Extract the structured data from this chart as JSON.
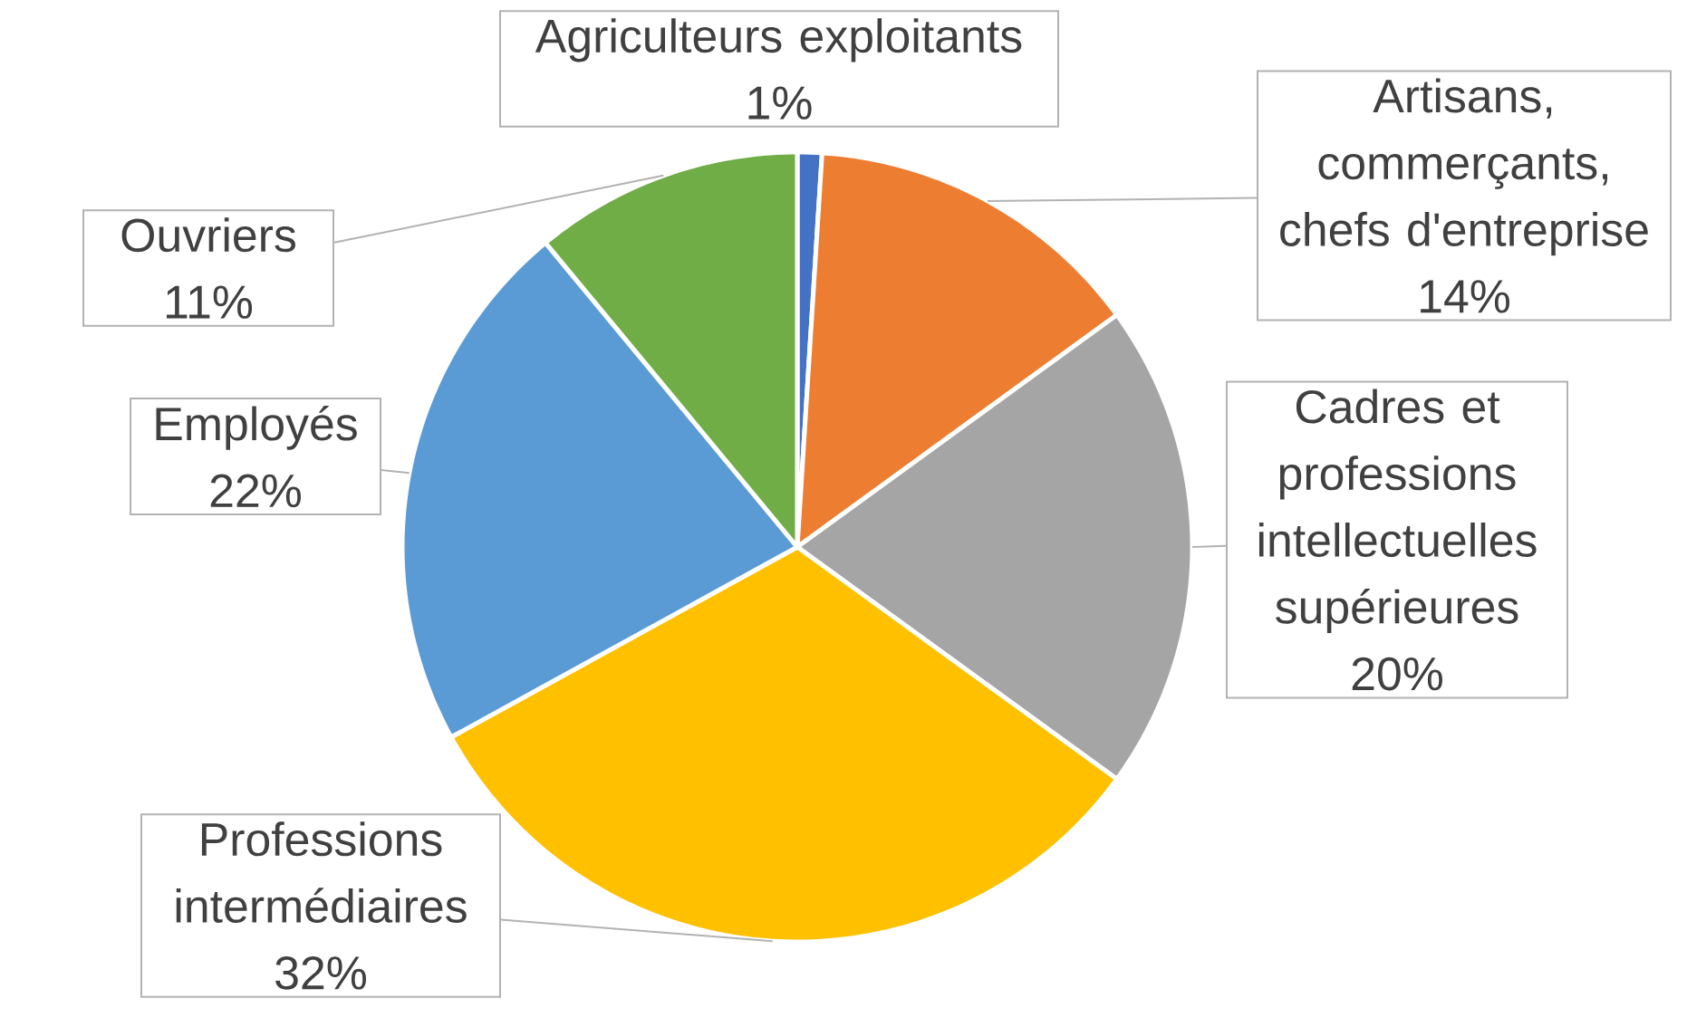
{
  "chart_data": {
    "type": "pie",
    "categories": [
      "Agriculteurs exploitants",
      "Artisans, commerçants, chefs d'entreprise",
      "Cadres et professions intellectuelles supérieures",
      "Professions intermédiaires",
      "Employés",
      "Ouvriers"
    ],
    "values": [
      1,
      14,
      20,
      32,
      22,
      11
    ],
    "value_labels": [
      "1%",
      "14%",
      "20%",
      "32%",
      "22%",
      "11%"
    ],
    "colors": [
      "#4472c4",
      "#ed7d31",
      "#a5a5a5",
      "#ffc000",
      "#5b9bd5",
      "#70ad47"
    ]
  }
}
